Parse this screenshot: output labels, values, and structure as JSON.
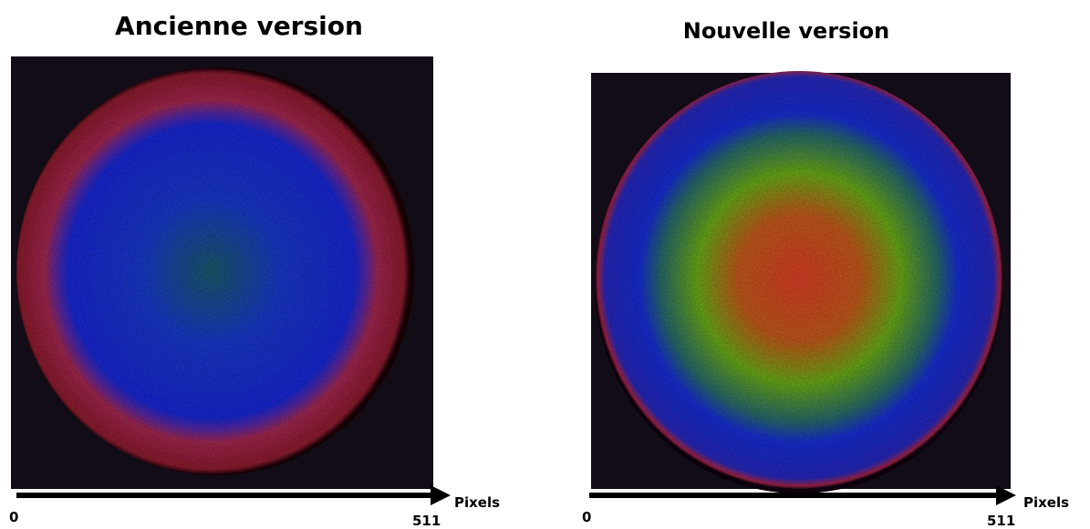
{
  "panels": [
    {
      "title": "Ancienne version",
      "axis": {
        "start": 0,
        "end": 511,
        "label": "Pixels"
      }
    },
    {
      "title": "Nouvelle version",
      "axis": {
        "start": 0,
        "end": 511,
        "label": "Pixels"
      }
    }
  ]
}
